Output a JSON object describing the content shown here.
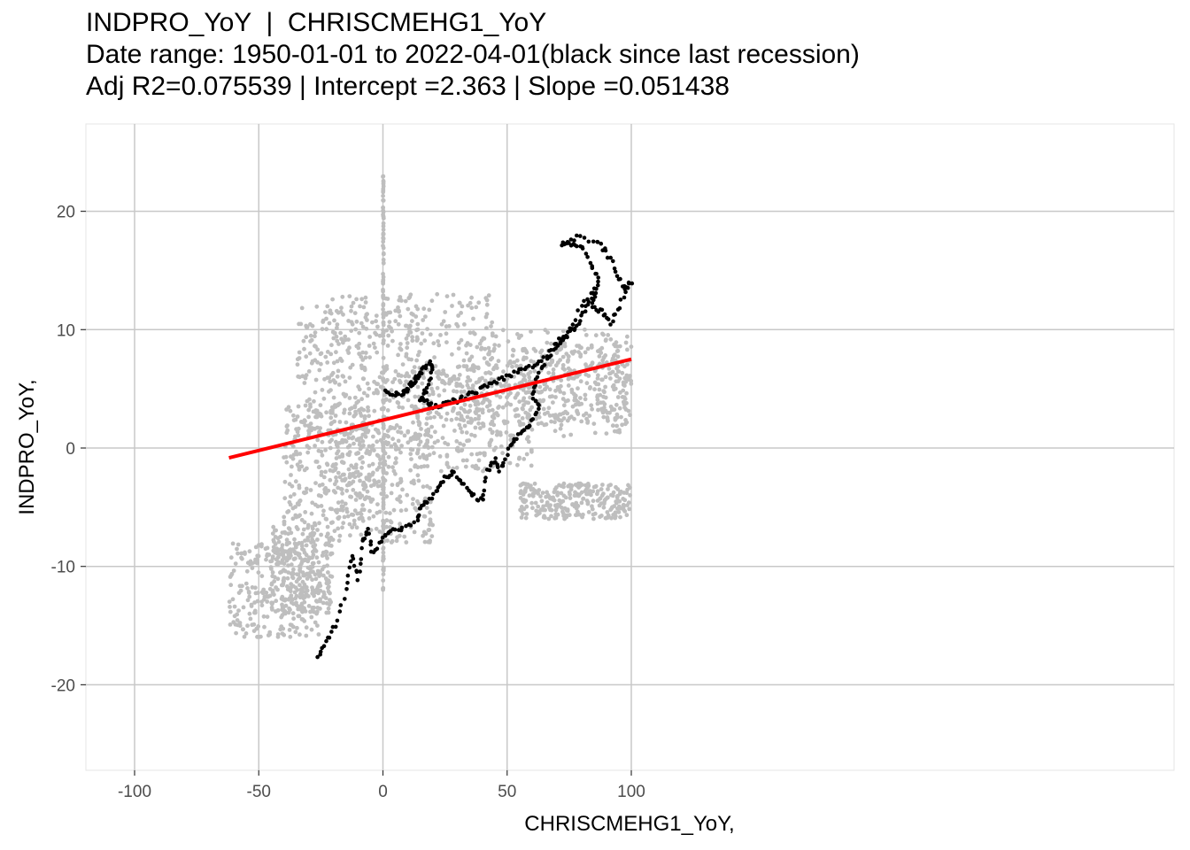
{
  "title_lines": [
    "INDPRO_YoY  |  CHRISCMEHG1_YoY",
    "Date range: 1950-01-01 to 2022-04-01(black since last recession)",
    "Adj R2=0.075539 | Intercept =2.363 | Slope =0.051438"
  ],
  "chart_data": {
    "type": "scatter",
    "xlabel": "CHRISCMEHG1_YoY,",
    "ylabel": "INDPRO_YoY,",
    "xlim": [
      -110,
      110
    ],
    "ylim": [
      -27,
      27
    ],
    "x_ticks": [
      -100,
      -50,
      0,
      50,
      100
    ],
    "y_ticks": [
      -20,
      -10,
      0,
      10,
      20
    ],
    "x_tick_labels": [
      "-100",
      "-50",
      "0",
      "50",
      "100"
    ],
    "y_tick_labels": [
      "-20",
      "-10",
      "0",
      "10",
      "20"
    ],
    "grid": true,
    "regression": {
      "intercept": 2.363,
      "slope": 0.051438,
      "x_range": [
        -62,
        100
      ],
      "color": "#ff0000"
    },
    "colors": {
      "historical": "#bebebe",
      "recent": "#000000",
      "panel": "#ffffff",
      "grid": "#c8c8c8"
    },
    "historical_clusters": [
      {
        "x": [
          -62,
          -25
        ],
        "y": [
          -16,
          -8
        ]
      },
      {
        "x": [
          -45,
          -20
        ],
        "y": [
          -14,
          -6
        ]
      },
      {
        "x": [
          -40,
          -5
        ],
        "y": [
          -6,
          4
        ]
      },
      {
        "x": [
          -35,
          15
        ],
        "y": [
          0,
          12
        ]
      },
      {
        "x": [
          -25,
          45
        ],
        "y": [
          2,
          13
        ]
      },
      {
        "x": [
          -20,
          20
        ],
        "y": [
          -8,
          2
        ]
      },
      {
        "x": [
          10,
          60
        ],
        "y": [
          -2,
          7
        ]
      },
      {
        "x": [
          30,
          100
        ],
        "y": [
          1,
          10
        ]
      },
      {
        "x": [
          55,
          100
        ],
        "y": [
          2,
          9
        ]
      },
      {
        "x": [
          55,
          100
        ],
        "y": [
          -6,
          -3
        ]
      },
      {
        "x": [
          0,
          0.3
        ],
        "y": [
          -12,
          23
        ]
      }
    ],
    "recent_path": [
      [
        -26,
        -17.5
      ],
      [
        -23,
        -16.5
      ],
      [
        -19,
        -15
      ],
      [
        -15,
        -12
      ],
      [
        -12,
        -9
      ],
      [
        -10,
        -11
      ],
      [
        -8,
        -8
      ],
      [
        -6,
        -7
      ],
      [
        -4,
        -9
      ],
      [
        0,
        -7.5
      ],
      [
        3,
        -7
      ],
      [
        8,
        -6.8
      ],
      [
        14,
        -6.2
      ],
      [
        15,
        -5
      ],
      [
        18,
        -4.5
      ],
      [
        22,
        -3.5
      ],
      [
        25,
        -2.5
      ],
      [
        28,
        -2
      ],
      [
        32,
        -3
      ],
      [
        36,
        -4
      ],
      [
        40,
        -4.5
      ],
      [
        42,
        -2
      ],
      [
        45,
        -1
      ],
      [
        47,
        -2
      ],
      [
        50,
        -0.5
      ],
      [
        53,
        0.8
      ],
      [
        57,
        1.5
      ],
      [
        60,
        2.2
      ],
      [
        63,
        3.5
      ],
      [
        60,
        4.5
      ],
      [
        62,
        6
      ],
      [
        66,
        7.5
      ],
      [
        70,
        8.5
      ],
      [
        73,
        9.5
      ],
      [
        77,
        10
      ],
      [
        80,
        11
      ],
      [
        83,
        12.5
      ],
      [
        87,
        14
      ],
      [
        84,
        15.5
      ],
      [
        80,
        17
      ],
      [
        76,
        17.3
      ],
      [
        72,
        17.2
      ],
      [
        78,
        17.8
      ],
      [
        86,
        17.5
      ],
      [
        90,
        16.5
      ],
      [
        94,
        15
      ],
      [
        97,
        13.5
      ],
      [
        100,
        14
      ],
      [
        95,
        12
      ],
      [
        92,
        10.5
      ],
      [
        88,
        11.5
      ],
      [
        84,
        12
      ],
      [
        86,
        13.5
      ],
      [
        80,
        12
      ],
      [
        74,
        9.5
      ],
      [
        70,
        9
      ],
      [
        65,
        7.5
      ],
      [
        60,
        7
      ],
      [
        55,
        6.5
      ],
      [
        50,
        6
      ],
      [
        45,
        5.5
      ],
      [
        40,
        5
      ],
      [
        35,
        4.5
      ],
      [
        30,
        4
      ],
      [
        25,
        3.8
      ],
      [
        20,
        3.5
      ],
      [
        17,
        4
      ],
      [
        15,
        4.2
      ],
      [
        18,
        5
      ],
      [
        20,
        6.5
      ],
      [
        19,
        7.3
      ],
      [
        16,
        6.5
      ],
      [
        14,
        6
      ],
      [
        12,
        5.5
      ],
      [
        10,
        5
      ],
      [
        8,
        4.6
      ],
      [
        4,
        4.6
      ],
      [
        0,
        5
      ]
    ]
  }
}
